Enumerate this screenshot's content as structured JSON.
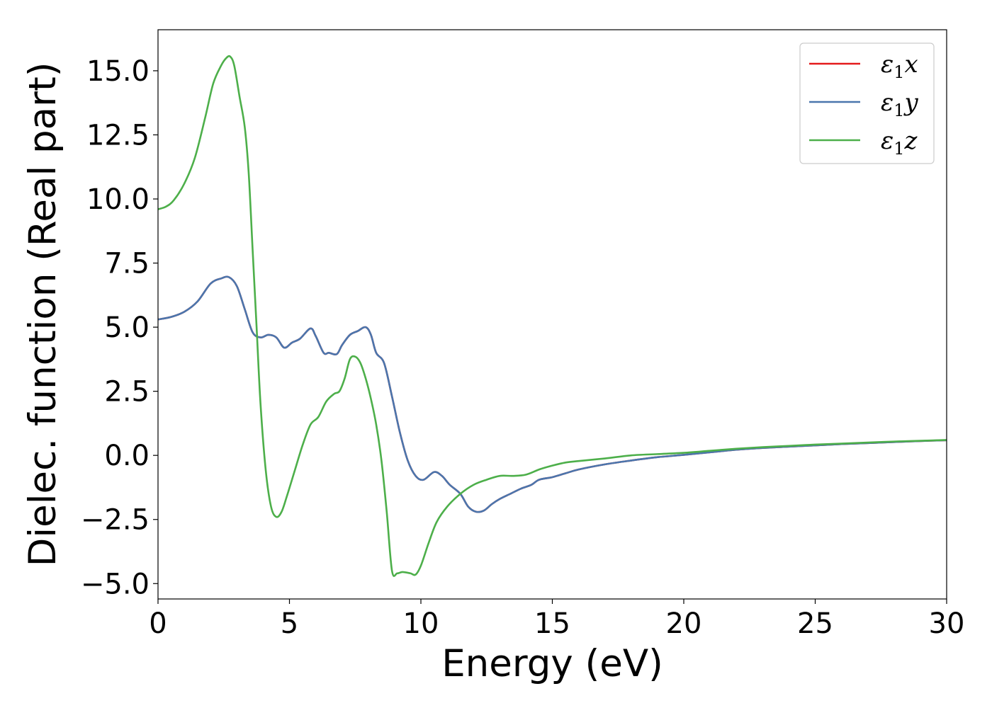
{
  "chart_data": {
    "type": "line",
    "xlabel": "Energy (eV)",
    "ylabel": "Dielec. function (Real part)",
    "xlim": [
      0,
      30
    ],
    "ylim": [
      -5.6,
      16.6
    ],
    "xticks": [
      0,
      5,
      10,
      15,
      20,
      25,
      30
    ],
    "xtick_labels": [
      "0",
      "5",
      "10",
      "15",
      "20",
      "25",
      "30"
    ],
    "yticks": [
      -5.0,
      -2.5,
      0.0,
      2.5,
      5.0,
      7.5,
      10.0,
      12.5,
      15.0
    ],
    "ytick_labels": [
      "−5.0",
      "−2.5",
      "0.0",
      "2.5",
      "5.0",
      "7.5",
      "10.0",
      "12.5",
      "15.0"
    ],
    "grid": false,
    "legend_position": "top-right",
    "series": [
      {
        "name": "ε",
        "sub": "1",
        "suffix": "x",
        "color": "#e41a1c",
        "x": [
          0,
          0.5,
          1.0,
          1.5,
          2.0,
          2.4,
          2.7,
          3.0,
          3.3,
          3.6,
          3.9,
          4.2,
          4.5,
          4.8,
          5.1,
          5.4,
          5.8,
          6.0,
          6.3,
          6.5,
          6.8,
          7.0,
          7.3,
          7.6,
          7.9,
          8.1,
          8.3,
          8.6,
          8.9,
          9.2,
          9.5,
          9.8,
          10.1,
          10.5,
          10.8,
          11.1,
          11.5,
          11.8,
          12.1,
          12.4,
          12.7,
          13.0,
          13.4,
          13.8,
          14.2,
          14.5,
          15.0,
          15.5,
          16.0,
          17.0,
          18.0,
          19.0,
          20.0,
          21.0,
          22.0,
          23.0,
          24.0,
          25.0,
          26.0,
          27.0,
          28.0,
          29.0,
          30.0
        ],
        "y": [
          5.3,
          5.4,
          5.6,
          6.0,
          6.7,
          6.9,
          6.95,
          6.6,
          5.7,
          4.8,
          4.6,
          4.7,
          4.6,
          4.2,
          4.4,
          4.55,
          4.95,
          4.65,
          4.0,
          4.0,
          3.95,
          4.3,
          4.7,
          4.85,
          5.0,
          4.7,
          4.0,
          3.6,
          2.3,
          0.9,
          -0.2,
          -0.8,
          -0.95,
          -0.65,
          -0.8,
          -1.15,
          -1.5,
          -2.0,
          -2.2,
          -2.15,
          -1.9,
          -1.7,
          -1.5,
          -1.3,
          -1.15,
          -0.95,
          -0.85,
          -0.7,
          -0.55,
          -0.35,
          -0.2,
          -0.07,
          0.02,
          0.12,
          0.22,
          0.29,
          0.34,
          0.39,
          0.44,
          0.48,
          0.52,
          0.56,
          0.59
        ]
      },
      {
        "name": "ε",
        "sub": "1",
        "suffix": "y",
        "color": "#4a76ad",
        "x": [
          0,
          0.5,
          1.0,
          1.5,
          2.0,
          2.4,
          2.7,
          3.0,
          3.3,
          3.6,
          3.9,
          4.2,
          4.5,
          4.8,
          5.1,
          5.4,
          5.8,
          6.0,
          6.3,
          6.5,
          6.8,
          7.0,
          7.3,
          7.6,
          7.9,
          8.1,
          8.3,
          8.6,
          8.9,
          9.2,
          9.5,
          9.8,
          10.1,
          10.5,
          10.8,
          11.1,
          11.5,
          11.8,
          12.1,
          12.4,
          12.7,
          13.0,
          13.4,
          13.8,
          14.2,
          14.5,
          15.0,
          15.5,
          16.0,
          17.0,
          18.0,
          19.0,
          20.0,
          21.0,
          22.0,
          23.0,
          24.0,
          25.0,
          26.0,
          27.0,
          28.0,
          29.0,
          30.0
        ],
        "y": [
          5.3,
          5.4,
          5.6,
          6.0,
          6.7,
          6.9,
          6.95,
          6.6,
          5.7,
          4.8,
          4.6,
          4.7,
          4.6,
          4.2,
          4.4,
          4.55,
          4.95,
          4.65,
          4.0,
          4.0,
          3.95,
          4.3,
          4.7,
          4.85,
          5.0,
          4.7,
          4.0,
          3.6,
          2.3,
          0.9,
          -0.2,
          -0.8,
          -0.95,
          -0.65,
          -0.8,
          -1.15,
          -1.5,
          -2.0,
          -2.2,
          -2.15,
          -1.9,
          -1.7,
          -1.5,
          -1.3,
          -1.15,
          -0.95,
          -0.85,
          -0.7,
          -0.55,
          -0.35,
          -0.2,
          -0.07,
          0.02,
          0.12,
          0.22,
          0.29,
          0.34,
          0.39,
          0.44,
          0.48,
          0.52,
          0.56,
          0.59
        ]
      },
      {
        "name": "ε",
        "sub": "1",
        "suffix": "z",
        "color": "#4daf4a",
        "x": [
          0,
          0.3,
          0.6,
          1.0,
          1.4,
          1.8,
          2.1,
          2.4,
          2.6,
          2.75,
          2.9,
          3.1,
          3.3,
          3.45,
          3.6,
          3.75,
          3.9,
          4.1,
          4.3,
          4.5,
          4.7,
          4.9,
          5.2,
          5.5,
          5.8,
          6.1,
          6.4,
          6.7,
          6.9,
          7.1,
          7.3,
          7.5,
          7.7,
          7.9,
          8.1,
          8.3,
          8.5,
          8.7,
          8.9,
          9.1,
          9.3,
          9.6,
          9.8,
          10.0,
          10.3,
          10.6,
          11.0,
          11.5,
          12.0,
          12.5,
          13.0,
          13.5,
          14.0,
          14.5,
          15.0,
          15.5,
          16.0,
          17.0,
          18.0,
          19.0,
          20.0,
          21.0,
          22.0,
          23.0,
          24.0,
          25.0,
          26.0,
          27.0,
          28.0,
          29.0,
          30.0
        ],
        "y": [
          9.6,
          9.7,
          9.95,
          10.6,
          11.6,
          13.2,
          14.5,
          15.2,
          15.5,
          15.55,
          15.2,
          14.0,
          12.8,
          11.0,
          8.0,
          5.0,
          2.0,
          -0.6,
          -2.0,
          -2.4,
          -2.2,
          -1.6,
          -0.6,
          0.4,
          1.2,
          1.5,
          2.1,
          2.4,
          2.5,
          3.0,
          3.75,
          3.85,
          3.6,
          3.0,
          2.2,
          1.2,
          -0.2,
          -2.2,
          -4.5,
          -4.6,
          -4.55,
          -4.6,
          -4.65,
          -4.3,
          -3.4,
          -2.6,
          -2.0,
          -1.5,
          -1.15,
          -0.95,
          -0.8,
          -0.8,
          -0.75,
          -0.55,
          -0.4,
          -0.28,
          -0.22,
          -0.12,
          0.0,
          0.05,
          0.1,
          0.18,
          0.26,
          0.32,
          0.37,
          0.42,
          0.46,
          0.5,
          0.54,
          0.57,
          0.6
        ]
      }
    ]
  }
}
